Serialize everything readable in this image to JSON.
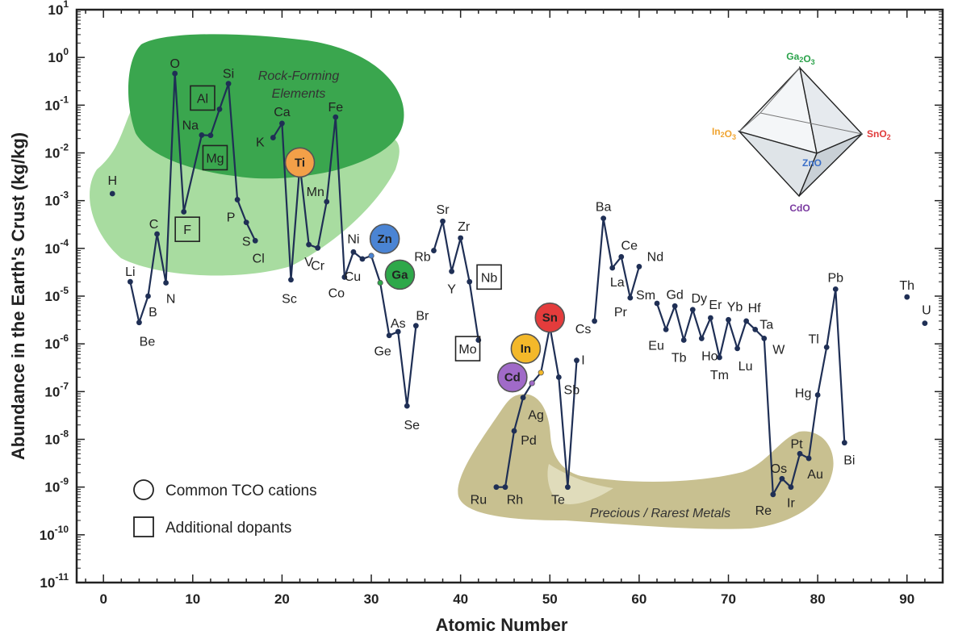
{
  "chart_data": {
    "type": "line",
    "title": "",
    "xlabel": "Atomic Number",
    "ylabel": "Abundance in the Earth's Crust (kg/kg)",
    "xlim": [
      -3,
      94
    ],
    "ylim_log10": [
      -11,
      1
    ],
    "y_scale": "log",
    "x_ticks": [
      0,
      10,
      20,
      30,
      40,
      50,
      60,
      70,
      80,
      90
    ],
    "y_ticks": [
      {
        "base": "10",
        "exp": "1"
      },
      {
        "base": "10",
        "exp": "0"
      },
      {
        "base": "10",
        "exp": "-1"
      },
      {
        "base": "10",
        "exp": "-2"
      },
      {
        "base": "10",
        "exp": "-3"
      },
      {
        "base": "10",
        "exp": "-4"
      },
      {
        "base": "10",
        "exp": "-5"
      },
      {
        "base": "10",
        "exp": "-6"
      },
      {
        "base": "10",
        "exp": "-7"
      },
      {
        "base": "10",
        "exp": "-8"
      },
      {
        "base": "10",
        "exp": "-9"
      },
      {
        "base": "10",
        "exp": "-10"
      },
      {
        "base": "10",
        "exp": "-11"
      }
    ],
    "grid": false,
    "series": [
      {
        "points": [
          {
            "x": 3,
            "y": 2e-05,
            "label": "Li"
          },
          {
            "x": 4,
            "y": 2.8e-06,
            "label": "Be"
          },
          {
            "x": 5,
            "y": 1e-05,
            "label": "B"
          },
          {
            "x": 6,
            "y": 0.0002,
            "label": "C"
          },
          {
            "x": 7,
            "y": 1.9e-05,
            "label": "N"
          },
          {
            "x": 8,
            "y": 0.461,
            "label": "O"
          },
          {
            "x": 9,
            "y": 0.000585,
            "label": "F"
          },
          {
            "x": 11,
            "y": 0.0236,
            "label": "Na"
          },
          {
            "x": 12,
            "y": 0.0233,
            "label": "Mg"
          },
          {
            "x": 13,
            "y": 0.0823,
            "label": "Al"
          },
          {
            "x": 14,
            "y": 0.282,
            "label": "Si"
          },
          {
            "x": 15,
            "y": 0.00105,
            "label": "P"
          },
          {
            "x": 16,
            "y": 0.00035,
            "label": "S"
          },
          {
            "x": 17,
            "y": 0.000145,
            "label": "Cl"
          }
        ]
      },
      {
        "points": [
          {
            "x": 19,
            "y": 0.0209,
            "label": "K"
          },
          {
            "x": 20,
            "y": 0.0415,
            "label": "Ca"
          },
          {
            "x": 21,
            "y": 2.2e-05,
            "label": "Sc"
          },
          {
            "x": 22,
            "y": 0.00565,
            "label": "Ti"
          },
          {
            "x": 23,
            "y": 0.00012,
            "label": "V"
          },
          {
            "x": 24,
            "y": 0.000102,
            "label": "Cr"
          },
          {
            "x": 25,
            "y": 0.00095,
            "label": "Mn"
          },
          {
            "x": 26,
            "y": 0.0563,
            "label": "Fe"
          },
          {
            "x": 27,
            "y": 2.5e-05,
            "label": "Co"
          },
          {
            "x": 28,
            "y": 8.4e-05,
            "label": "Ni"
          },
          {
            "x": 29,
            "y": 6e-05,
            "label": "Cu"
          },
          {
            "x": 30,
            "y": 7e-05,
            "label": "Zn"
          },
          {
            "x": 31,
            "y": 1.9e-05,
            "label": "Ga"
          },
          {
            "x": 32,
            "y": 1.5e-06,
            "label": "Ge"
          },
          {
            "x": 33,
            "y": 1.8e-06,
            "label": "As"
          },
          {
            "x": 34,
            "y": 5e-08,
            "label": "Se"
          },
          {
            "x": 35,
            "y": 2.4e-06,
            "label": "Br"
          }
        ]
      },
      {
        "points": [
          {
            "x": 37,
            "y": 9e-05,
            "label": "Rb"
          },
          {
            "x": 38,
            "y": 0.00037,
            "label": "Sr"
          },
          {
            "x": 39,
            "y": 3.3e-05,
            "label": "Y"
          },
          {
            "x": 40,
            "y": 0.000165,
            "label": "Zr"
          },
          {
            "x": 41,
            "y": 2e-05,
            "label": "Nb"
          },
          {
            "x": 42,
            "y": 1.2e-06,
            "label": "Mo"
          }
        ]
      },
      {
        "points": [
          {
            "x": 44,
            "y": 1e-09,
            "label": "Ru"
          },
          {
            "x": 45,
            "y": 1e-09,
            "label": "Rh"
          },
          {
            "x": 46,
            "y": 1.5e-08,
            "label": "Pd"
          },
          {
            "x": 47,
            "y": 7.5e-08,
            "label": "Ag"
          },
          {
            "x": 48,
            "y": 1.5e-07,
            "label": "Cd"
          },
          {
            "x": 49,
            "y": 2.5e-07,
            "label": "In"
          },
          {
            "x": 50,
            "y": 2.3e-06,
            "label": "Sn"
          },
          {
            "x": 51,
            "y": 2e-07,
            "label": "Sb"
          },
          {
            "x": 52,
            "y": 1e-09,
            "label": "Te"
          },
          {
            "x": 53,
            "y": 4.5e-07,
            "label": "I"
          }
        ]
      },
      {
        "points": [
          {
            "x": 55,
            "y": 3e-06,
            "label": "Cs"
          },
          {
            "x": 56,
            "y": 0.000425,
            "label": "Ba"
          },
          {
            "x": 57,
            "y": 3.9e-05,
            "label": "La"
          },
          {
            "x": 58,
            "y": 6.65e-05,
            "label": "Ce"
          },
          {
            "x": 59,
            "y": 9.2e-06,
            "label": "Pr"
          },
          {
            "x": 60,
            "y": 4.15e-05,
            "label": "Nd"
          }
        ]
      },
      {
        "points": [
          {
            "x": 62,
            "y": 7.05e-06,
            "label": "Sm"
          },
          {
            "x": 63,
            "y": 2e-06,
            "label": "Eu"
          },
          {
            "x": 64,
            "y": 6.2e-06,
            "label": "Gd"
          },
          {
            "x": 65,
            "y": 1.2e-06,
            "label": "Tb"
          },
          {
            "x": 66,
            "y": 5.2e-06,
            "label": "Dy"
          },
          {
            "x": 67,
            "y": 1.3e-06,
            "label": "Ho"
          },
          {
            "x": 68,
            "y": 3.5e-06,
            "label": "Er"
          },
          {
            "x": 69,
            "y": 5.2e-07,
            "label": "Tm"
          },
          {
            "x": 70,
            "y": 3.2e-06,
            "label": "Yb"
          },
          {
            "x": 71,
            "y": 8e-07,
            "label": "Lu"
          },
          {
            "x": 72,
            "y": 3e-06,
            "label": "Hf"
          },
          {
            "x": 73,
            "y": 2e-06,
            "label": "Ta"
          },
          {
            "x": 74,
            "y": 1.3e-06,
            "label": "W"
          },
          {
            "x": 75,
            "y": 7e-10,
            "label": "Re"
          },
          {
            "x": 76,
            "y": 1.5e-09,
            "label": "Os"
          },
          {
            "x": 77,
            "y": 1e-09,
            "label": "Ir"
          },
          {
            "x": 78,
            "y": 5e-09,
            "label": "Pt"
          },
          {
            "x": 79,
            "y": 4e-09,
            "label": "Au"
          },
          {
            "x": 80,
            "y": 8.5e-08,
            "label": "Hg"
          },
          {
            "x": 81,
            "y": 8.5e-07,
            "label": "Tl"
          },
          {
            "x": 82,
            "y": 1.4e-05,
            "label": "Pb"
          },
          {
            "x": 83,
            "y": 8.5e-09,
            "label": "Bi"
          }
        ]
      },
      {
        "points": [
          {
            "x": 1,
            "y": 0.0014,
            "label": "H"
          }
        ]
      },
      {
        "points": [
          {
            "x": 90,
            "y": 9.6e-06,
            "label": "Th"
          }
        ]
      },
      {
        "points": [
          {
            "x": 92,
            "y": 2.7e-06,
            "label": "U"
          }
        ]
      }
    ],
    "tco_cations": [
      "Ti",
      "Zn",
      "Ga",
      "Sn",
      "In",
      "Cd"
    ],
    "additional_dopants": [
      "Al",
      "Mg",
      "F",
      "Nb",
      "Mo"
    ],
    "regions": [
      {
        "label_line1": "Rock-Forming",
        "label_line2": "Elements"
      },
      {
        "label_line1": "Precious / Rarest Metals",
        "label_line2": ""
      }
    ],
    "legend": {
      "position": "bottom-left",
      "entries": [
        {
          "marker": "circle",
          "label": "Common TCO cations"
        },
        {
          "marker": "square",
          "label": "Additional dopants"
        }
      ]
    },
    "inset": {
      "type": "octahedron",
      "vertices": [
        {
          "label": "Ga",
          "sub": "2",
          "label2": "O",
          "sub2": "3",
          "color": "#2aa24a"
        },
        {
          "label": "In",
          "sub": "2",
          "label2": "O",
          "sub2": "3",
          "color": "#f0a430"
        },
        {
          "label": "SnO",
          "sub": "2",
          "label2": "",
          "sub2": "",
          "color": "#e03a3a"
        },
        {
          "label": "ZnO",
          "sub": "",
          "label2": "",
          "sub2": "",
          "color": "#3a6fc8"
        },
        {
          "label": "CdO",
          "sub": "",
          "label2": "",
          "sub2": "",
          "color": "#7a3aa0"
        }
      ]
    },
    "colors": {
      "line": "#1f2f55",
      "marker": "#1f2f55",
      "rock_dark": "#3aa64e",
      "rock_light": "#a8dca0",
      "precious": "#c8c090",
      "Ti": "#f3a048",
      "Zn": "#4a84d4",
      "Ga": "#2ea84a",
      "Sn": "#e43c3c",
      "In": "#f3b82a",
      "Cd": "#a06ac8"
    }
  }
}
